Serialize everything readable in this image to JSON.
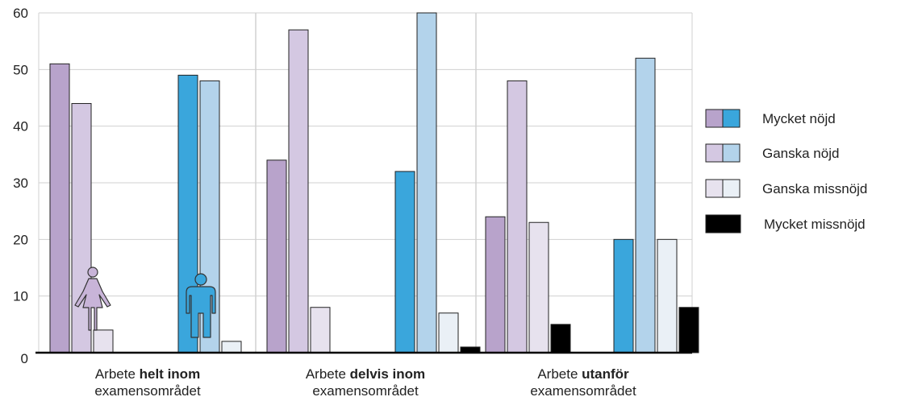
{
  "chart_data": {
    "type": "bar",
    "ylim": [
      0,
      60
    ],
    "yticks": [
      "0",
      "10",
      "20",
      "30",
      "40",
      "50",
      "60"
    ],
    "grid": true,
    "legend_placement": "right",
    "categories": [
      {
        "pre": "Arbete ",
        "bold": "helt inom",
        "line2": "examensområdet"
      },
      {
        "pre": "Arbete ",
        "bold": "delvis inom",
        "line2": "examensområdet"
      },
      {
        "pre": "Arbete ",
        "bold": "utanför",
        "line2": "examensområdet"
      }
    ],
    "groups": [
      "Kvinnor",
      "Män"
    ],
    "series": [
      {
        "name": "Mycket nöjd",
        "colors": {
          "Kvinnor": "#b8a3cb",
          "Män": "#3aa6dc"
        },
        "values": {
          "Kvinnor": [
            51,
            34,
            24
          ],
          "Män": [
            49,
            32,
            20
          ]
        }
      },
      {
        "name": "Ganska nöjd",
        "colors": {
          "Kvinnor": "#d4c8e2",
          "Män": "#b3d3eb"
        },
        "values": {
          "Kvinnor": [
            44,
            57,
            48
          ],
          "Män": [
            48,
            60,
            52
          ]
        }
      },
      {
        "name": "Ganska missnöjd",
        "colors": {
          "Kvinnor": "#e7e2ee",
          "Män": "#eaf0f6"
        },
        "values": {
          "Kvinnor": [
            4,
            8,
            23
          ],
          "Män": [
            2,
            7,
            20
          ]
        }
      },
      {
        "name": "Mycket missnöjd",
        "colors": {
          "Kvinnor": "#000000",
          "Män": "#000000"
        },
        "values": {
          "Kvinnor": [
            0,
            0,
            5
          ],
          "Män": [
            0,
            1,
            8
          ]
        }
      }
    ],
    "icons": {
      "female": "female-figure-icon",
      "male": "male-figure-icon"
    },
    "colors": {
      "female_icon": "#c8b4d8",
      "male_icon": "#3aa6dc",
      "grid": "#d0d0d0",
      "axis": "#000000"
    }
  }
}
